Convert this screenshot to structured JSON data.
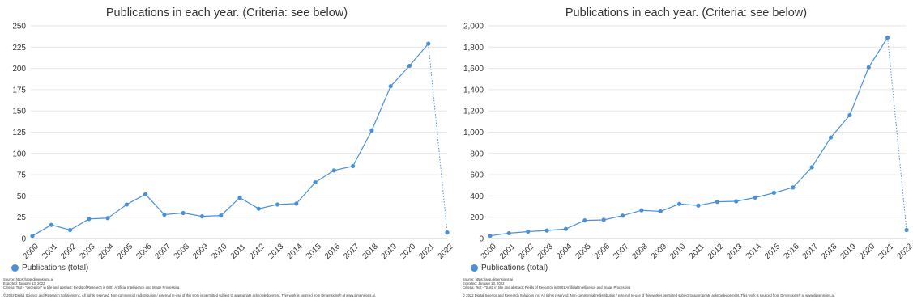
{
  "colors": {
    "series": "#4a90d9",
    "grid": "#e6e6e6",
    "axis": "#cccccc",
    "text": "#333333"
  },
  "footer": {
    "source": "Source: https://app.dimensions.ai",
    "exported": "Exported: January 13, 2022",
    "copyright": "© 2022 Digital Science and Research Solutions Inc. All rights reserved. Non-commercial redistribution / external re-use of this work is permitted subject to appropriate acknowledgement. This work is sourced from Dimensions® at www.dimensions.ai."
  },
  "chart_data": [
    {
      "type": "line",
      "title": "Publications in each year. (Criteria: see below)",
      "xlabel": "",
      "ylabel": "",
      "categories": [
        "2000",
        "2001",
        "2002",
        "2003",
        "2004",
        "2005",
        "2006",
        "2007",
        "2008",
        "2009",
        "2010",
        "2011",
        "2012",
        "2013",
        "2014",
        "2015",
        "2016",
        "2017",
        "2018",
        "2019",
        "2020",
        "2021",
        "2022"
      ],
      "series": [
        {
          "name": "Publications (total)",
          "values": [
            3,
            16,
            10,
            23,
            24,
            40,
            52,
            28,
            30,
            26,
            27,
            48,
            35,
            40,
            41,
            66,
            80,
            85,
            127,
            179,
            203,
            229,
            7
          ]
        }
      ],
      "dotted_last_segment": true,
      "ylim": [
        0,
        250
      ],
      "yticks": [
        "0",
        "25",
        "50",
        "75",
        "100",
        "125",
        "150",
        "175",
        "200",
        "225",
        "250"
      ],
      "ytick_values": [
        0,
        25,
        50,
        75,
        100,
        125,
        150,
        175,
        200,
        225,
        250
      ],
      "grid": true,
      "legend": "bottom-left",
      "criteria": "Criteria: Text - \"deception\" in title and abstract; Fields of Research is 0801 Artificial Intelligence and Image Processing."
    },
    {
      "type": "line",
      "title": "Publications in each year. (Criteria: see below)",
      "xlabel": "",
      "ylabel": "",
      "categories": [
        "2000",
        "2001",
        "2002",
        "2003",
        "2004",
        "2005",
        "2006",
        "2007",
        "2008",
        "2009",
        "2010",
        "2011",
        "2012",
        "2013",
        "2014",
        "2015",
        "2016",
        "2017",
        "2018",
        "2019",
        "2020",
        "2021",
        "2022"
      ],
      "series": [
        {
          "name": "Publications (total)",
          "values": [
            25,
            50,
            65,
            75,
            90,
            170,
            175,
            215,
            265,
            255,
            325,
            310,
            345,
            350,
            385,
            430,
            480,
            670,
            950,
            1160,
            1610,
            1890,
            80
          ]
        }
      ],
      "dotted_last_segment": true,
      "ylim": [
        0,
        2000
      ],
      "yticks": [
        "0",
        "200",
        "400",
        "600",
        "800",
        "1,000",
        "1,200",
        "1,400",
        "1,600",
        "1,800",
        "2,000"
      ],
      "ytick_values": [
        0,
        200,
        400,
        600,
        800,
        1000,
        1200,
        1400,
        1600,
        1800,
        2000
      ],
      "grid": true,
      "legend": "bottom-left",
      "criteria": "Criteria: Text - \"trust\" in title and abstract; Fields of Research is 0801 Artificial Intelligence and Image Processing."
    }
  ]
}
